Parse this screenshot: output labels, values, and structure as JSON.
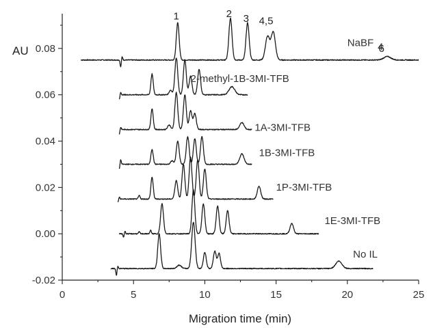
{
  "chart_data": {
    "type": "line",
    "xlabel": "Migration time (min)",
    "ylabel": "AU",
    "xlim": [
      0,
      25
    ],
    "ylim": [
      -0.02,
      0.095
    ],
    "xticks": [
      0,
      5,
      10,
      15,
      20,
      25
    ],
    "yticks": [
      -0.02,
      0.0,
      0.02,
      0.04,
      0.06,
      0.08
    ],
    "ytick_labels": [
      "-0.02",
      "0.00",
      "0.02",
      "0.04",
      "0.06",
      "0.08"
    ],
    "grid": false,
    "series": [
      {
        "name": "NaBF",
        "subscript": "4",
        "baseline": 0.075,
        "x_start": 1.3,
        "x_end": 25.0,
        "label_x": 20.0,
        "label_y": 0.081,
        "dip": {
          "x": 4.1,
          "depth": 0.003,
          "up": 0.0015
        },
        "peaks": [
          {
            "x": 8.1,
            "h": 0.016,
            "w": 0.1
          },
          {
            "x": 11.8,
            "h": 0.018,
            "w": 0.11
          },
          {
            "x": 13.0,
            "h": 0.016,
            "w": 0.11
          },
          {
            "x": 14.4,
            "h": 0.01,
            "w": 0.15
          },
          {
            "x": 14.8,
            "h": 0.012,
            "w": 0.15
          },
          {
            "x": 22.8,
            "h": 0.0015,
            "w": 0.25
          }
        ]
      },
      {
        "name": "2-methyl-1B-3MI-TFB",
        "baseline": 0.06,
        "x_start": 4.0,
        "x_end": 13.0,
        "label_x": 9.0,
        "label_y": 0.0655,
        "dip": {
          "x": 4.0,
          "depth": 0.002,
          "up": 0.001
        },
        "peaks": [
          {
            "x": 6.3,
            "h": 0.009,
            "w": 0.08
          },
          {
            "x": 7.6,
            "h": 0.002,
            "w": 0.1
          },
          {
            "x": 8.0,
            "h": 0.016,
            "w": 0.1
          },
          {
            "x": 8.6,
            "h": 0.015,
            "w": 0.1
          },
          {
            "x": 9.0,
            "h": 0.008,
            "w": 0.1
          },
          {
            "x": 9.6,
            "h": 0.011,
            "w": 0.1
          },
          {
            "x": 11.9,
            "h": 0.0035,
            "w": 0.2
          }
        ]
      },
      {
        "name": "1A-3MI-TFB",
        "baseline": 0.045,
        "x_start": 4.0,
        "x_end": 13.3,
        "label_x": 13.5,
        "label_y": 0.0445,
        "dip": {
          "x": 4.0,
          "depth": 0.002,
          "up": 0.001
        },
        "peaks": [
          {
            "x": 6.3,
            "h": 0.009,
            "w": 0.08
          },
          {
            "x": 7.5,
            "h": 0.002,
            "w": 0.1
          },
          {
            "x": 8.0,
            "h": 0.016,
            "w": 0.1
          },
          {
            "x": 8.6,
            "h": 0.015,
            "w": 0.1
          },
          {
            "x": 9.0,
            "h": 0.008,
            "w": 0.1
          },
          {
            "x": 9.3,
            "h": 0.007,
            "w": 0.1
          },
          {
            "x": 12.6,
            "h": 0.003,
            "w": 0.15
          }
        ]
      },
      {
        "name": "1B-3MI-TFB",
        "baseline": 0.03,
        "x_start": 4.0,
        "x_end": 13.3,
        "label_x": 13.8,
        "label_y": 0.0335,
        "dip": {
          "x": 4.0,
          "depth": 0.002,
          "up": 0.002
        },
        "peaks": [
          {
            "x": 6.3,
            "h": 0.0065,
            "w": 0.08
          },
          {
            "x": 7.7,
            "h": 0.0015,
            "w": 0.1
          },
          {
            "x": 8.1,
            "h": 0.01,
            "w": 0.1
          },
          {
            "x": 8.8,
            "h": 0.012,
            "w": 0.1
          },
          {
            "x": 9.3,
            "h": 0.011,
            "w": 0.1
          },
          {
            "x": 9.8,
            "h": 0.012,
            "w": 0.1
          },
          {
            "x": 12.6,
            "h": 0.0045,
            "w": 0.15
          }
        ]
      },
      {
        "name": "1P-3MI-TFB",
        "baseline": 0.015,
        "x_start": 3.9,
        "x_end": 14.8,
        "label_x": 15.0,
        "label_y": 0.0186,
        "dip": {
          "x": 3.9,
          "depth": 0.0015,
          "up": 0.0008
        },
        "peaks": [
          {
            "x": 5.4,
            "h": 0.0015,
            "w": 0.06
          },
          {
            "x": 6.3,
            "h": 0.0095,
            "w": 0.08
          },
          {
            "x": 8.0,
            "h": 0.008,
            "w": 0.1
          },
          {
            "x": 8.5,
            "h": 0.015,
            "w": 0.1
          },
          {
            "x": 9.0,
            "h": 0.018,
            "w": 0.1
          },
          {
            "x": 9.5,
            "h": 0.017,
            "w": 0.1
          },
          {
            "x": 10.0,
            "h": 0.013,
            "w": 0.1
          },
          {
            "x": 13.8,
            "h": 0.0055,
            "w": 0.12
          }
        ]
      },
      {
        "name": "1E-3MI-TFB",
        "baseline": 0.0,
        "x_start": 4.0,
        "x_end": 18.0,
        "label_x": 18.4,
        "label_y": 0.0042,
        "dip": {
          "x": 4.3,
          "depth": 0.0015,
          "up": 0.0012
        },
        "peaks": [
          {
            "x": 5.4,
            "h": 0.0008,
            "w": 0.05
          },
          {
            "x": 6.2,
            "h": 0.0015,
            "w": 0.05
          },
          {
            "x": 7.0,
            "h": 0.013,
            "w": 0.1
          },
          {
            "x": 9.2,
            "h": 0.019,
            "w": 0.1
          },
          {
            "x": 9.9,
            "h": 0.013,
            "w": 0.1
          },
          {
            "x": 10.9,
            "h": 0.012,
            "w": 0.1
          },
          {
            "x": 11.6,
            "h": 0.01,
            "w": 0.1
          },
          {
            "x": 16.1,
            "h": 0.0045,
            "w": 0.12
          }
        ]
      },
      {
        "name": "No IL",
        "baseline": -0.015,
        "x_start": 3.4,
        "x_end": 21.8,
        "label_x": 20.4,
        "label_y": -0.0103,
        "dip": {
          "x": 3.8,
          "depth": 0.003,
          "up": 0.001
        },
        "peaks": [
          {
            "x": 6.8,
            "h": 0.015,
            "w": 0.1
          },
          {
            "x": 8.2,
            "h": 0.0015,
            "w": 0.15
          },
          {
            "x": 9.2,
            "h": 0.02,
            "w": 0.12
          },
          {
            "x": 10.0,
            "h": 0.007,
            "w": 0.1
          },
          {
            "x": 10.7,
            "h": 0.0075,
            "w": 0.1
          },
          {
            "x": 11.0,
            "h": 0.0065,
            "w": 0.1
          },
          {
            "x": 19.4,
            "h": 0.0032,
            "w": 0.22
          }
        ]
      }
    ],
    "peak_labels": [
      {
        "text": "1",
        "x": 8.0,
        "y": 0.0925
      },
      {
        "text": "2",
        "x": 11.7,
        "y": 0.0935
      },
      {
        "text": "3",
        "x": 12.9,
        "y": 0.0915
      },
      {
        "text": "4,5",
        "x": 14.3,
        "y": 0.0905
      },
      {
        "text": "6",
        "x": 22.4,
        "y": 0.0785
      }
    ]
  }
}
